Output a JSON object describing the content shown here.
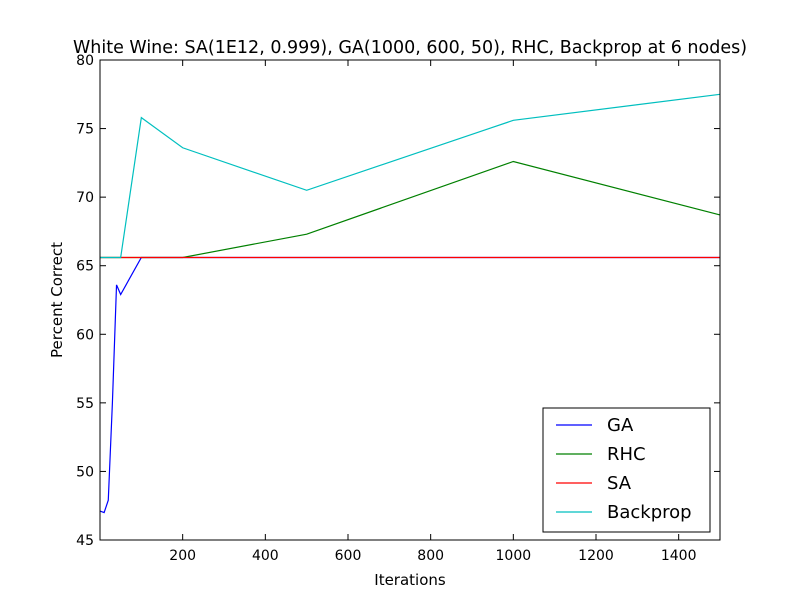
{
  "chart_data": {
    "type": "line",
    "title": "White Wine: SA(1E12, 0.999), GA(1000, 600, 50), RHC, Backprop at 6 nodes)",
    "xlabel": "Iterations",
    "ylabel": "Percent Correct",
    "xlim": [
      0,
      1500
    ],
    "ylim": [
      45,
      80
    ],
    "xticks": [
      200,
      400,
      600,
      800,
      1000,
      1200,
      1400
    ],
    "yticks": [
      45,
      50,
      55,
      60,
      65,
      70,
      75,
      80
    ],
    "grid": false,
    "legend_position": "lower-right",
    "series": [
      {
        "name": "GA",
        "color": "#0000ff",
        "x": [
          1,
          10,
          20,
          30,
          40,
          50,
          100,
          200,
          500,
          1000,
          1500
        ],
        "y": [
          47.1,
          47.0,
          47.9,
          55.0,
          63.6,
          62.9,
          65.6,
          65.6,
          65.6,
          65.6,
          65.6
        ]
      },
      {
        "name": "RHC",
        "color": "#008000",
        "x": [
          1,
          10,
          20,
          30,
          40,
          50,
          100,
          200,
          500,
          1000,
          1500
        ],
        "y": [
          65.6,
          65.6,
          65.6,
          65.6,
          65.6,
          65.6,
          65.6,
          65.6,
          67.3,
          72.6,
          68.7
        ]
      },
      {
        "name": "SA",
        "color": "#ff0000",
        "x": [
          1,
          10,
          20,
          30,
          40,
          50,
          100,
          200,
          500,
          1000,
          1500
        ],
        "y": [
          65.6,
          65.6,
          65.6,
          65.6,
          65.6,
          65.6,
          65.6,
          65.6,
          65.6,
          65.6,
          65.6
        ]
      },
      {
        "name": "Backprop",
        "color": "#00bfbf",
        "x": [
          1,
          10,
          20,
          30,
          40,
          50,
          100,
          200,
          500,
          1000,
          1500
        ],
        "y": [
          65.6,
          65.6,
          65.6,
          65.6,
          65.6,
          65.6,
          75.8,
          73.6,
          70.5,
          75.6,
          77.5
        ]
      }
    ]
  }
}
